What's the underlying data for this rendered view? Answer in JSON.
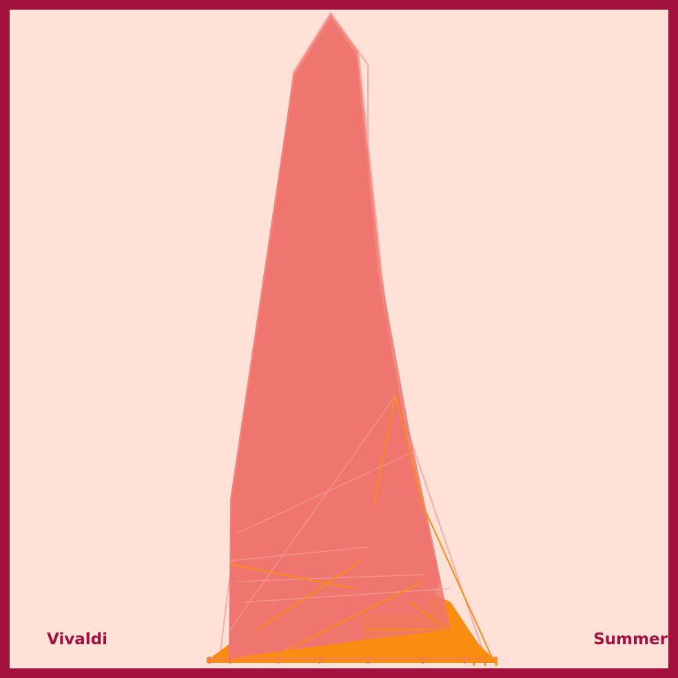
{
  "artist": "Vivaldi",
  "piece": "Summer",
  "colors": {
    "frame": "#a3123c",
    "background": "#ffe1d8",
    "salmon": "#ee766f",
    "salmon_light": "#f4a19a",
    "orange": "#fb8c12",
    "text": "#a3123c"
  }
}
